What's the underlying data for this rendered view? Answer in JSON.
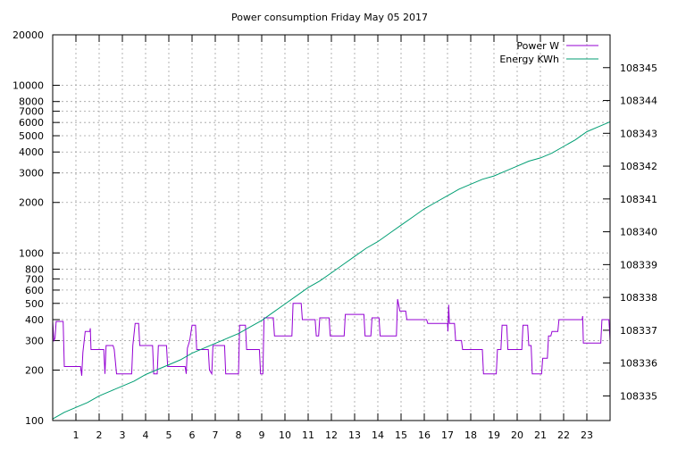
{
  "chart_data": {
    "type": "line",
    "title": "Power consumption Friday May 05 2017",
    "y_scale": "log",
    "ylim": [
      100,
      20000
    ],
    "y_ticks": [
      100,
      200,
      300,
      400,
      500,
      600,
      700,
      800,
      1000,
      2000,
      3000,
      4000,
      5000,
      6000,
      7000,
      8000,
      10000,
      20000
    ],
    "y2lim": [
      108334.25,
      108346.0
    ],
    "y2_ticks": [
      108335,
      108336,
      108337,
      108338,
      108339,
      108340,
      108341,
      108342,
      108343,
      108344,
      108345
    ],
    "xlim": [
      0,
      24
    ],
    "x_ticks": [
      1,
      2,
      3,
      4,
      5,
      6,
      7,
      8,
      9,
      10,
      11,
      12,
      13,
      14,
      15,
      16,
      17,
      18,
      19,
      20,
      21,
      22,
      23
    ],
    "grid": true,
    "legend_position": "top-right",
    "series": [
      {
        "name": "Power W",
        "color": "#9400d3",
        "axis": "y1",
        "points": [
          [
            0.0,
            390
          ],
          [
            0.05,
            300
          ],
          [
            0.1,
            310
          ],
          [
            0.15,
            390
          ],
          [
            0.45,
            390
          ],
          [
            0.5,
            210
          ],
          [
            1.2,
            210
          ],
          [
            1.25,
            185
          ],
          [
            1.3,
            255
          ],
          [
            1.4,
            340
          ],
          [
            1.6,
            340
          ],
          [
            1.62,
            355
          ],
          [
            1.65,
            265
          ],
          [
            2.2,
            265
          ],
          [
            2.25,
            190
          ],
          [
            2.3,
            280
          ],
          [
            2.6,
            280
          ],
          [
            2.65,
            265
          ],
          [
            2.75,
            190
          ],
          [
            3.4,
            190
          ],
          [
            3.45,
            280
          ],
          [
            3.55,
            380
          ],
          [
            3.7,
            380
          ],
          [
            3.75,
            280
          ],
          [
            4.3,
            280
          ],
          [
            4.35,
            190
          ],
          [
            4.5,
            190
          ],
          [
            4.55,
            280
          ],
          [
            4.9,
            280
          ],
          [
            4.95,
            210
          ],
          [
            5.7,
            210
          ],
          [
            5.75,
            190
          ],
          [
            5.8,
            270
          ],
          [
            5.9,
            300
          ],
          [
            6.0,
            370
          ],
          [
            6.15,
            370
          ],
          [
            6.2,
            265
          ],
          [
            6.7,
            265
          ],
          [
            6.75,
            200
          ],
          [
            6.85,
            190
          ],
          [
            6.9,
            280
          ],
          [
            7.4,
            280
          ],
          [
            7.45,
            190
          ],
          [
            8.0,
            190
          ],
          [
            8.05,
            370
          ],
          [
            8.3,
            370
          ],
          [
            8.35,
            265
          ],
          [
            8.9,
            265
          ],
          [
            8.95,
            190
          ],
          [
            9.05,
            190
          ],
          [
            9.1,
            410
          ],
          [
            9.5,
            410
          ],
          [
            9.55,
            320
          ],
          [
            10.3,
            320
          ],
          [
            10.35,
            500
          ],
          [
            10.7,
            500
          ],
          [
            10.75,
            400
          ],
          [
            11.3,
            400
          ],
          [
            11.35,
            320
          ],
          [
            11.45,
            320
          ],
          [
            11.5,
            410
          ],
          [
            11.9,
            410
          ],
          [
            11.95,
            320
          ],
          [
            12.55,
            320
          ],
          [
            12.6,
            430
          ],
          [
            13.4,
            430
          ],
          [
            13.45,
            320
          ],
          [
            13.7,
            320
          ],
          [
            13.75,
            410
          ],
          [
            14.05,
            410
          ],
          [
            14.1,
            320
          ],
          [
            14.8,
            320
          ],
          [
            14.85,
            530
          ],
          [
            14.95,
            450
          ],
          [
            15.2,
            450
          ],
          [
            15.25,
            400
          ],
          [
            16.1,
            400
          ],
          [
            16.15,
            380
          ],
          [
            17.0,
            380
          ],
          [
            17.02,
            340
          ],
          [
            17.05,
            490
          ],
          [
            17.08,
            380
          ],
          [
            17.3,
            380
          ],
          [
            17.35,
            300
          ],
          [
            17.6,
            300
          ],
          [
            17.65,
            265
          ],
          [
            18.5,
            265
          ],
          [
            18.55,
            190
          ],
          [
            19.1,
            190
          ],
          [
            19.15,
            265
          ],
          [
            19.3,
            265
          ],
          [
            19.35,
            370
          ],
          [
            19.55,
            370
          ],
          [
            19.6,
            265
          ],
          [
            20.2,
            265
          ],
          [
            20.25,
            370
          ],
          [
            20.45,
            370
          ],
          [
            20.5,
            280
          ],
          [
            20.6,
            280
          ],
          [
            20.65,
            190
          ],
          [
            21.05,
            190
          ],
          [
            21.1,
            235
          ],
          [
            21.3,
            235
          ],
          [
            21.35,
            320
          ],
          [
            21.45,
            320
          ],
          [
            21.5,
            340
          ],
          [
            21.75,
            340
          ],
          [
            21.8,
            400
          ],
          [
            22.8,
            400
          ],
          [
            22.82,
            420
          ],
          [
            22.85,
            290
          ],
          [
            23.6,
            290
          ],
          [
            23.65,
            400
          ],
          [
            23.95,
            400
          ],
          [
            24.0,
            300
          ]
        ]
      },
      {
        "name": "Energy KWh",
        "color": "#009e73",
        "axis": "y2",
        "points": [
          [
            0,
            108334.3
          ],
          [
            0.5,
            108334.5
          ],
          [
            1,
            108334.65
          ],
          [
            1.5,
            108334.8
          ],
          [
            2,
            108335.0
          ],
          [
            2.5,
            108335.15
          ],
          [
            3,
            108335.3
          ],
          [
            3.5,
            108335.45
          ],
          [
            4,
            108335.65
          ],
          [
            4.5,
            108335.8
          ],
          [
            5,
            108335.95
          ],
          [
            5.5,
            108336.1
          ],
          [
            6,
            108336.3
          ],
          [
            6.5,
            108336.45
          ],
          [
            7,
            108336.6
          ],
          [
            7.5,
            108336.75
          ],
          [
            8,
            108336.9
          ],
          [
            8.5,
            108337.1
          ],
          [
            9,
            108337.3
          ],
          [
            9.5,
            108337.55
          ],
          [
            10,
            108337.8
          ],
          [
            10.5,
            108338.05
          ],
          [
            11,
            108338.3
          ],
          [
            11.5,
            108338.5
          ],
          [
            12,
            108338.75
          ],
          [
            12.5,
            108339.0
          ],
          [
            13,
            108339.25
          ],
          [
            13.5,
            108339.5
          ],
          [
            14,
            108339.7
          ],
          [
            14.5,
            108339.95
          ],
          [
            15,
            108340.2
          ],
          [
            15.5,
            108340.45
          ],
          [
            16,
            108340.7
          ],
          [
            16.5,
            108340.9
          ],
          [
            17,
            108341.1
          ],
          [
            17.5,
            108341.3
          ],
          [
            18,
            108341.45
          ],
          [
            18.5,
            108341.6
          ],
          [
            19,
            108341.7
          ],
          [
            19.5,
            108341.85
          ],
          [
            20,
            108342.0
          ],
          [
            20.5,
            108342.15
          ],
          [
            21,
            108342.25
          ],
          [
            21.5,
            108342.4
          ],
          [
            22,
            108342.6
          ],
          [
            22.5,
            108342.8
          ],
          [
            23,
            108343.05
          ],
          [
            23.5,
            108343.2
          ],
          [
            24,
            108343.35
          ]
        ]
      }
    ]
  }
}
